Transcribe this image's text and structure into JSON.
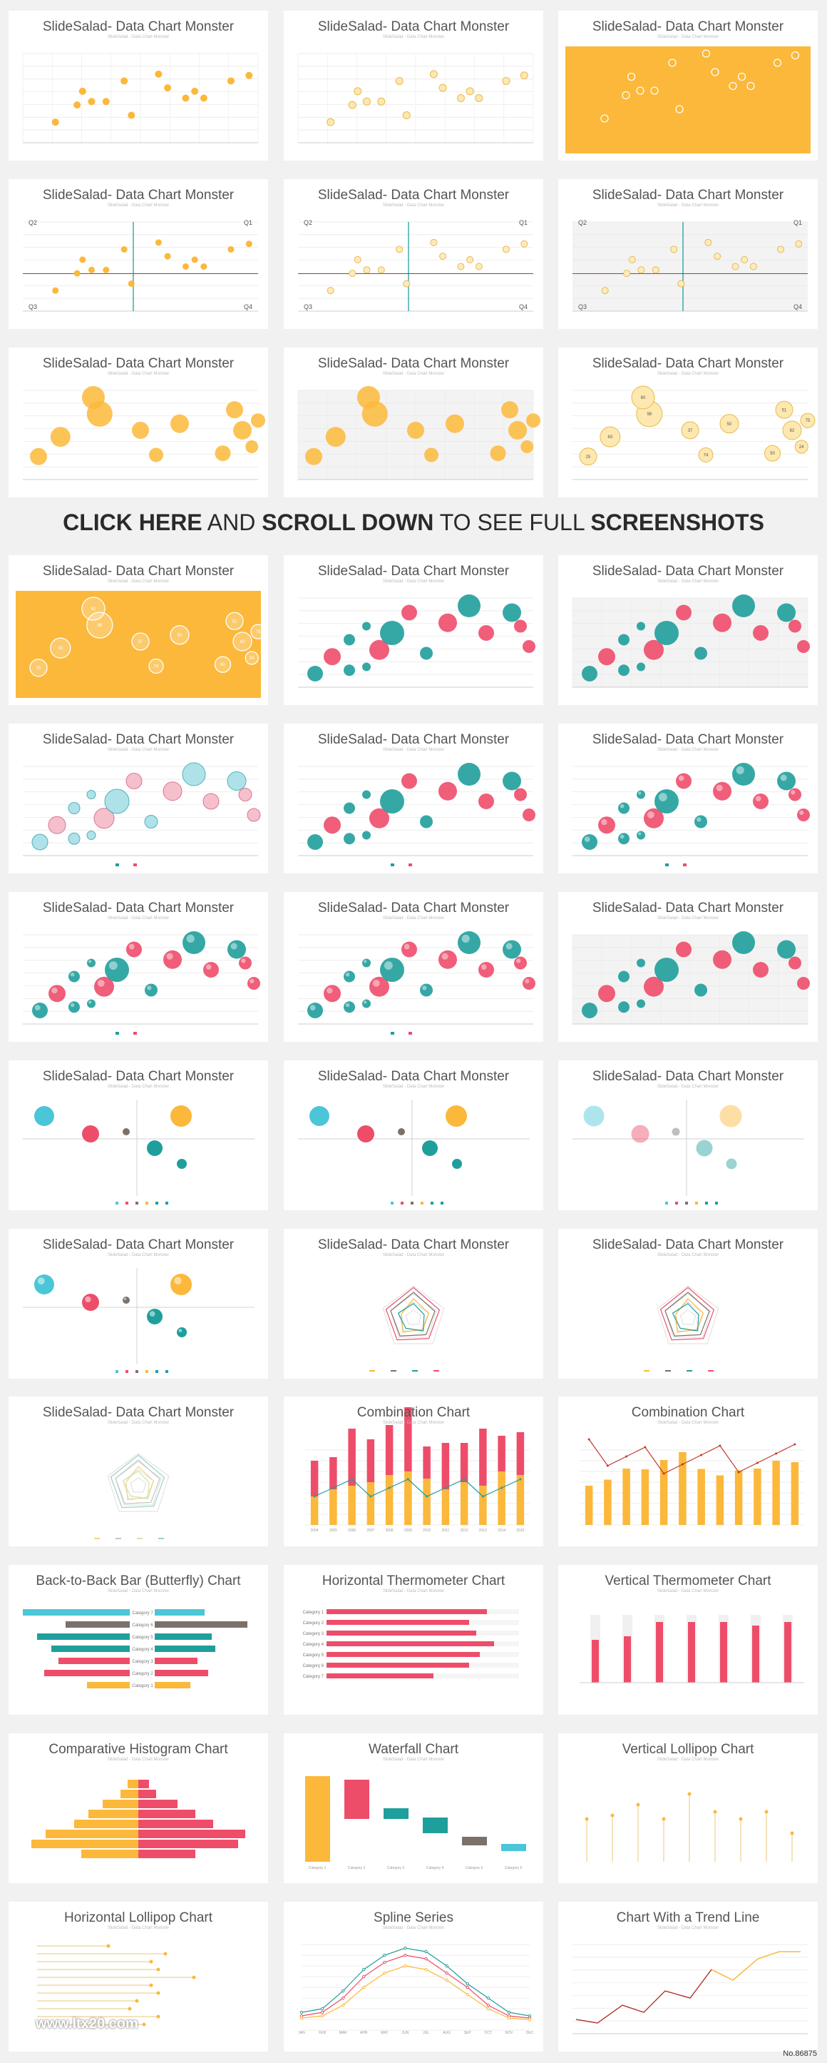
{
  "thumbnail_title": "SlideSalad- Data Chart Monster",
  "thumbnail_subtitle": "SlideSalad - Data Chart Monster",
  "banner": {
    "part1": "CLICK HERE",
    "part2": " AND ",
    "part3": "SCROLL DOWN",
    "part4": " TO SEE FULL ",
    "part5": "SCREENSHOTS"
  },
  "titles": {
    "combination": "Combination Chart",
    "butterfly": "Back-to-Back Bar (Butterfly) Chart",
    "hthermo": "Horizontal Thermometer Chart",
    "vthermo": "Vertical Thermometer Chart",
    "histogram": "Comparative Histogram Chart",
    "waterfall": "Waterfall Chart",
    "vlollipop": "Vertical Lollipop Chart",
    "hlollipop": "Horizontal Lollipop Chart",
    "spline": "Spline Series",
    "trend": "Chart With a Trend Line"
  },
  "watermark": "www.ltx20.com",
  "ref_number": "No.86875",
  "colors": {
    "yellow": "#fbb83a",
    "pink": "#ee4d6a",
    "teal": "#1f9f9c",
    "cyan": "#4bc6d8",
    "gray": "#7b716b"
  },
  "chart_data": [
    {
      "type": "scatter",
      "points": [
        [
          18,
          30
        ],
        [
          30,
          55
        ],
        [
          38,
          60
        ],
        [
          33,
          75
        ],
        [
          46,
          60
        ],
        [
          56,
          90
        ],
        [
          60,
          40
        ],
        [
          75,
          100
        ],
        [
          80,
          80
        ],
        [
          90,
          65
        ],
        [
          95,
          75
        ],
        [
          100,
          65
        ],
        [
          115,
          90
        ],
        [
          125,
          98
        ]
      ]
    },
    {
      "type": "scatter",
      "quadrants": [
        "Q2",
        "Q1",
        "Q3",
        "Q4"
      ]
    },
    {
      "type": "bubble",
      "labels": [
        "25",
        "63",
        "98",
        "60",
        "37",
        "50",
        "74",
        "50",
        "51",
        "82",
        "75",
        "24"
      ]
    },
    {
      "type": "bar",
      "title": "Combination Chart",
      "categories": [
        "2004",
        "2005",
        "2006",
        "2007",
        "2008",
        "2009",
        "2010",
        "2011",
        "2012",
        "2013",
        "2014",
        "2015"
      ]
    },
    {
      "type": "bar",
      "title": "Back-to-Back Bar (Butterfly) Chart",
      "categories": [
        "Category 1",
        "Category 2",
        "Category 3",
        "Category 4",
        "Category 5",
        "Category 6",
        "Category 7"
      ]
    },
    {
      "type": "bar",
      "title": "Horizontal Thermometer Chart",
      "categories": [
        "Category 1",
        "Category 2",
        "Category 3",
        "Category 4",
        "Category 5",
        "Category 6",
        "Category 7"
      ]
    },
    {
      "type": "bar",
      "title": "Waterfall Chart",
      "categories": [
        "Category 1",
        "Category 2",
        "Category 3",
        "Category 4",
        "Category 5",
        "Category 6"
      ]
    },
    {
      "type": "line",
      "title": "Spline Series",
      "categories": [
        "JAN",
        "FEB",
        "MAR",
        "APR",
        "MAY",
        "JUN",
        "JUL",
        "AUG",
        "SEP",
        "OCT",
        "NOV",
        "DEC"
      ]
    }
  ]
}
